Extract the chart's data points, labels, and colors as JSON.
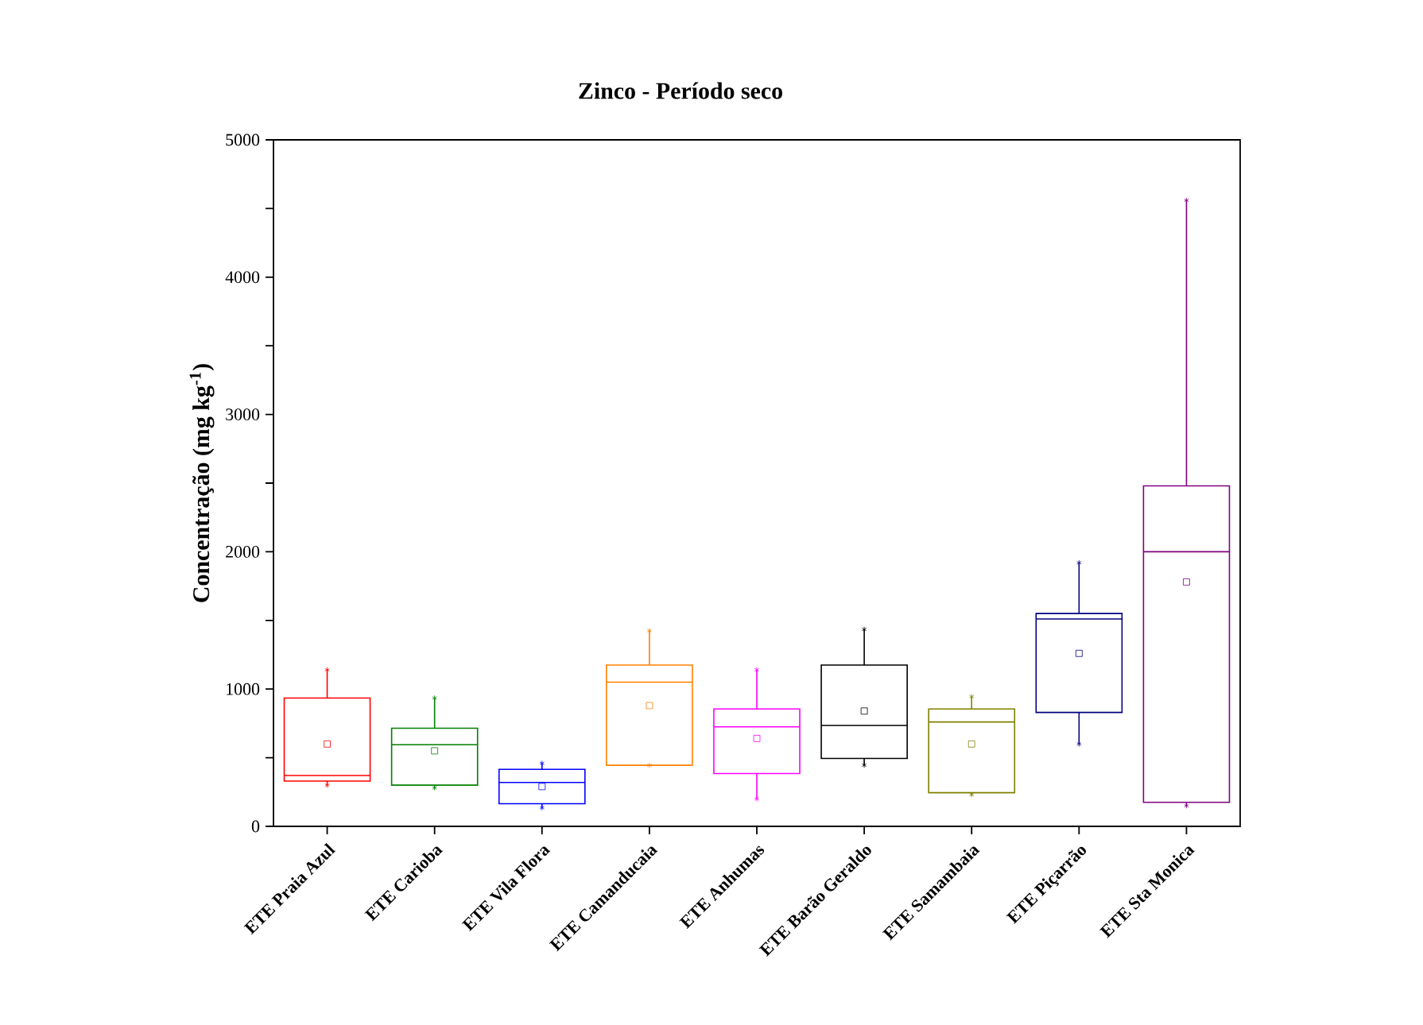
{
  "chart_data": {
    "type": "box",
    "title": "Zinco - Período seco",
    "ylabel": "Concentração (mg kg$^{-1}$)",
    "categories": [
      "ETE Praia Azul",
      "ETE Carioba",
      "ETE Vila Flora",
      "ETE Camanducaia",
      "ETE Anhumas",
      "ETE Barão Geraldo",
      "ETE Samambaia",
      "ETE Piçarrão",
      "ETE Sta Monica"
    ],
    "colors": [
      "#ff0000",
      "#008000",
      "#0000ff",
      "#ff8000",
      "#ff00ff",
      "#000000",
      "#808000",
      "#000080",
      "#800080"
    ],
    "boxes": [
      {
        "low": 300,
        "q1": 330,
        "median": 370,
        "q3": 935,
        "high": 1140,
        "mean": 600
      },
      {
        "low": 280,
        "q1": 300,
        "median": 595,
        "q3": 715,
        "high": 935,
        "mean": 550
      },
      {
        "low": 135,
        "q1": 165,
        "median": 320,
        "q3": 415,
        "high": 460,
        "mean": 290
      },
      {
        "low": 445,
        "q1": 445,
        "median": 1050,
        "q3": 1175,
        "high": 1425,
        "mean": 880
      },
      {
        "low": 200,
        "q1": 385,
        "median": 725,
        "q3": 855,
        "high": 1140,
        "mean": 640
      },
      {
        "low": 445,
        "q1": 495,
        "median": 735,
        "q3": 1175,
        "high": 1435,
        "mean": 840
      },
      {
        "low": 230,
        "q1": 245,
        "median": 760,
        "q3": 855,
        "high": 945,
        "mean": 600
      },
      {
        "low": 600,
        "q1": 830,
        "median": 1510,
        "q3": 1550,
        "high": 1920,
        "mean": 1260
      },
      {
        "low": 150,
        "q1": 175,
        "median": 2000,
        "q3": 2480,
        "high": 4560,
        "mean": 1780
      }
    ],
    "ylim": [
      0,
      5000
    ],
    "yticks": [
      0,
      {
        "value": 500,
        "label": null
      },
      1000,
      {
        "value": 1500,
        "label": null
      },
      2000,
      {
        "value": 2500,
        "label": null
      },
      3000,
      {
        "value": 3500,
        "label": null
      },
      4000,
      {
        "value": 4500,
        "label": null
      },
      5000
    ]
  }
}
